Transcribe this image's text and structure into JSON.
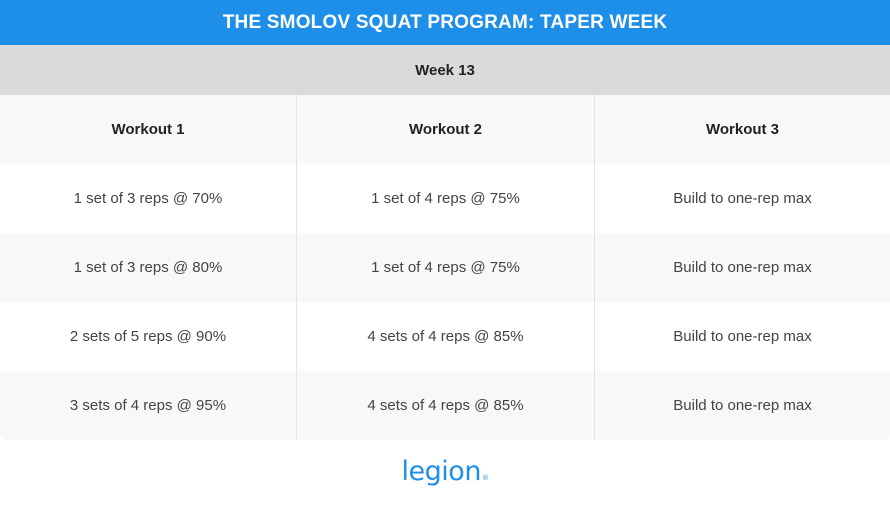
{
  "title": "THE SMOLOV SQUAT PROGRAM: TAPER WEEK",
  "week_label": "Week 13",
  "columns": [
    "Workout 1",
    "Workout 2",
    "Workout 3"
  ],
  "rows": [
    [
      "1 set of 3 reps @ 70%",
      "1 set of 4 reps @ 75%",
      "Build to one-rep max"
    ],
    [
      "1 set of 3 reps @ 80%",
      "1 set of 4 reps @ 75%",
      "Build to one-rep max"
    ],
    [
      "2 sets of 5 reps @ 90%",
      "4 sets of 4 reps @ 85%",
      "Build to one-rep max"
    ],
    [
      "3 sets of 4 reps @ 95%",
      "4 sets of 4 reps @ 85%",
      "Build to one-rep max"
    ]
  ],
  "logo_text": "legion",
  "logo_mark": "®",
  "colors": {
    "accent": "#1e8fe8",
    "week_bar": "#dadada",
    "row_alt": "#f8f8f8"
  }
}
